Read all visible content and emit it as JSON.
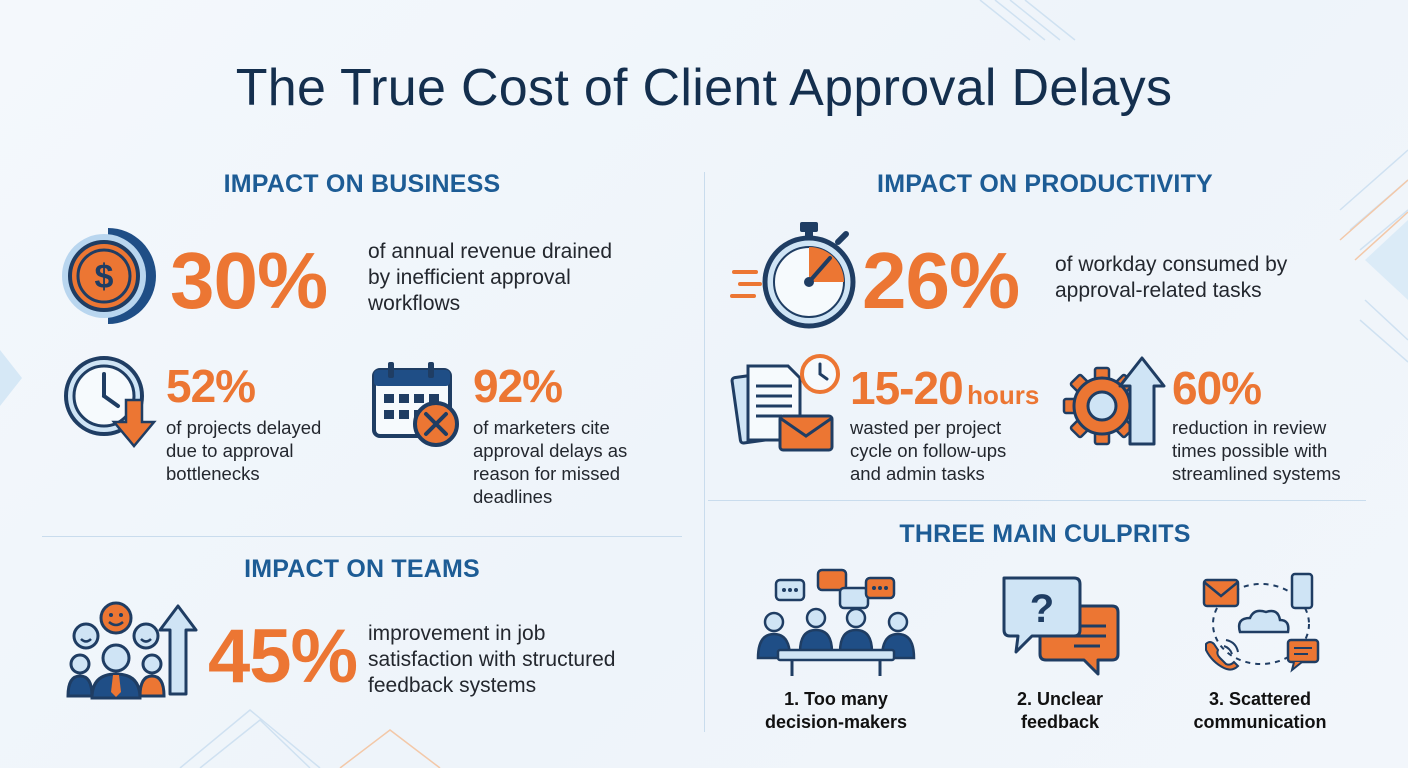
{
  "title": "The True Cost of Client Approval Delays",
  "business": {
    "heading": "IMPACT ON BUSINESS",
    "stat1": {
      "value": "30%",
      "text": [
        "of annual revenue drained",
        "by inefficient approval",
        "workflows"
      ],
      "icon": "dollar-coin-icon"
    },
    "stat2": {
      "value": "52%",
      "text": [
        "of projects delayed",
        "due to approval",
        "bottlenecks"
      ],
      "icon": "clock-down-arrow-icon"
    },
    "stat3": {
      "value": "92%",
      "text": [
        "of marketers cite",
        "approval delays as",
        "reason for missed",
        "deadlines"
      ],
      "icon": "calendar-cancel-icon"
    }
  },
  "teams": {
    "heading": "IMPACT ON TEAMS",
    "stat": {
      "value": "45%",
      "text": [
        "improvement in job",
        "satisfaction with structured",
        "feedback systems"
      ],
      "icon": "team-up-arrow-icon"
    }
  },
  "productivity": {
    "heading": "IMPACT ON PRODUCTIVITY",
    "stat1": {
      "value": "26%",
      "text": [
        "of workday consumed by",
        "approval-related tasks"
      ],
      "icon": "stopwatch-icon"
    },
    "stat2": {
      "value": "15-20",
      "unit": "hours",
      "text": [
        "wasted per project",
        "cycle on follow-ups",
        "and admin tasks"
      ],
      "icon": "documents-mail-icon"
    },
    "stat3": {
      "value": "60%",
      "text": [
        "reduction in review",
        "times possible with",
        "streamlined systems"
      ],
      "icon": "gear-up-arrow-icon"
    }
  },
  "culprits": {
    "heading": "THREE MAIN CULPRITS",
    "items": [
      {
        "label": [
          "1. Too many",
          "decision-makers"
        ],
        "icon": "meeting-people-icon"
      },
      {
        "label": [
          "2. Unclear",
          "feedback"
        ],
        "icon": "question-bubble-icon"
      },
      {
        "label": [
          "3. Scattered",
          "communication"
        ],
        "icon": "scattered-channels-icon"
      }
    ]
  },
  "colors": {
    "accent": "#ec7633",
    "heading": "#1d5c95",
    "title": "#142f4e",
    "navy": "#1f3d63",
    "light_blue": "#cfe4f5"
  }
}
